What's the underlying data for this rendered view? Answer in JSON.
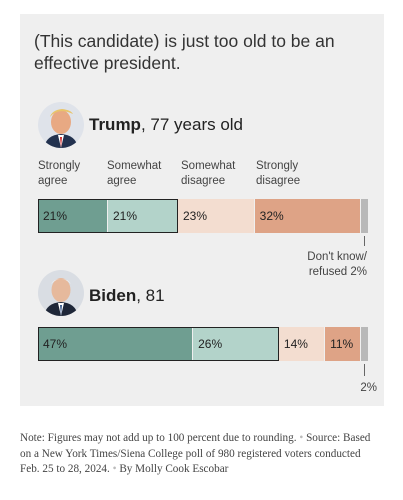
{
  "question": "(This candidate) is just too old to be an effective president.",
  "categories": [
    {
      "line1": "Strongly",
      "line2": "agree"
    },
    {
      "line1": "Somewhat",
      "line2": "agree"
    },
    {
      "line1": "Somewhat",
      "line2": "disagree"
    },
    {
      "line1": "Strongly",
      "line2": "disagree"
    }
  ],
  "colors": {
    "strongly_agree": "#6f9e91",
    "somewhat_agree": "#b3d3ca",
    "somewhat_disagree": "#f3ddd0",
    "strongly_disagree": "#dea386",
    "dont_know": "#b8b8b8",
    "panel": "#efefef"
  },
  "chart_data": {
    "type": "bar",
    "stacked": true,
    "orientation": "horizontal",
    "title": "(This candidate) is just too old to be an effective president.",
    "categories": [
      "Trump, 77 years old",
      "Biden, 81"
    ],
    "series": [
      {
        "name": "Strongly agree",
        "values": [
          21,
          47
        ]
      },
      {
        "name": "Somewhat agree",
        "values": [
          21,
          26
        ]
      },
      {
        "name": "Somewhat disagree",
        "values": [
          23,
          14
        ]
      },
      {
        "name": "Strongly disagree",
        "values": [
          32,
          11
        ]
      },
      {
        "name": "Don't know/refused",
        "values": [
          2,
          2
        ]
      }
    ],
    "xlim": [
      0,
      100
    ],
    "legend": "top"
  },
  "candidates": [
    {
      "name": "Trump",
      "detail": ", 77 years old",
      "icon": "trump-portrait-icon",
      "labels": [
        "21%",
        "21%",
        "23%",
        "32%"
      ],
      "dk_label_line1": "Don't know/",
      "dk_label_line2": "refused 2%"
    },
    {
      "name": "Biden",
      "detail": ", 81",
      "icon": "biden-portrait-icon",
      "labels": [
        "47%",
        "26%",
        "14%",
        "11%"
      ],
      "dk_label": "2%"
    }
  ],
  "note": {
    "prefix": "Note:",
    "text": " Figures may not add up to 100 percent due to rounding.",
    "sep": " • ",
    "source": "Source: Based on a New York Times/Siena College poll of 980 registered voters conducted Feb. 25 to 28, 2024.",
    "byline": "By Molly Cook Escobar"
  }
}
